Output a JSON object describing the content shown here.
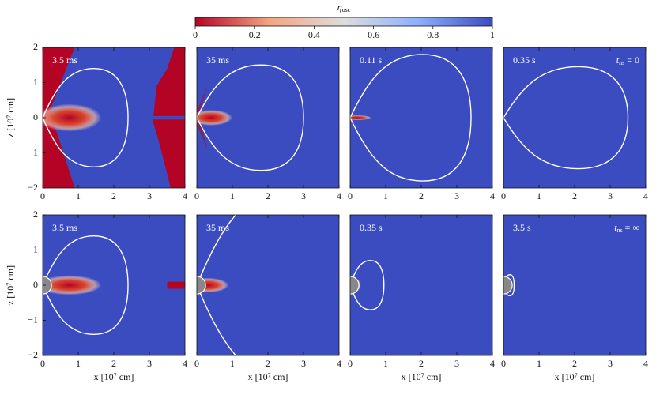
{
  "colorbar": {
    "label": "η",
    "label_sub": "osc",
    "lim": [
      0,
      1
    ],
    "ticks": [
      0,
      0.2,
      0.4,
      0.6,
      0.8,
      1
    ],
    "colormap": [
      "#b40426",
      "#f4a582",
      "#dddddd",
      "#8db0fe",
      "#3b4cc0"
    ]
  },
  "chart_data": [
    {
      "type": "heatmap",
      "title": "3.5 ms",
      "xlim": [
        0,
        4
      ],
      "ylim": [
        -2,
        2
      ],
      "xticks": [
        0,
        1,
        2,
        3,
        4
      ],
      "yticks": [
        {
          "value": -2,
          "label": "−2"
        },
        {
          "value": -1,
          "label": "−1"
        },
        0,
        1,
        2
      ],
      "ylabel": "z [10⁷ cm]"
    },
    {
      "type": "heatmap",
      "title": "35 ms",
      "xlim": [
        0,
        4
      ],
      "ylim": [
        -2,
        2
      ],
      "xticks": [
        0,
        1,
        2,
        3,
        4
      ]
    },
    {
      "type": "heatmap",
      "title": "0.11 s",
      "xlim": [
        0,
        4
      ],
      "ylim": [
        -2,
        2
      ],
      "xticks": [
        0,
        1,
        2,
        3,
        4
      ]
    },
    {
      "type": "heatmap",
      "title": "0.35 s",
      "xlim": [
        0,
        4
      ],
      "ylim": [
        -2,
        2
      ],
      "xticks": [
        0,
        1,
        2,
        3,
        4
      ],
      "annotation": {
        "var": "t",
        "sub": "ns",
        "rest": " = 0"
      }
    },
    {
      "type": "heatmap",
      "title": "3.5 ms",
      "xlim": [
        0,
        4
      ],
      "ylim": [
        -2,
        2
      ],
      "xticks": [
        0,
        1,
        2,
        3,
        4
      ],
      "yticks": [
        {
          "value": -2,
          "label": "−2"
        },
        {
          "value": -1,
          "label": "−1"
        },
        0,
        1,
        2
      ],
      "ylabel": "z [10⁷ cm]",
      "xlabel": "x [10⁷ cm]"
    },
    {
      "type": "heatmap",
      "title": "35 ms",
      "xlim": [
        0,
        4
      ],
      "ylim": [
        -2,
        2
      ],
      "xticks": [
        0,
        1,
        2,
        3,
        4
      ],
      "xlabel": "x [10⁷ cm]"
    },
    {
      "type": "heatmap",
      "title": "0.35 s",
      "xlim": [
        0,
        4
      ],
      "ylim": [
        -2,
        2
      ],
      "xticks": [
        0,
        1,
        2,
        3,
        4
      ],
      "xlabel": "x [10⁷ cm]"
    },
    {
      "type": "heatmap",
      "title": "3.5 s",
      "xlim": [
        0,
        4
      ],
      "ylim": [
        -2,
        2
      ],
      "xticks": [
        0,
        1,
        2,
        3,
        4
      ],
      "xlabel": "x [10⁷ cm]",
      "annotation": {
        "var": "t",
        "sub": "ns",
        "rest": " = ∞"
      }
    }
  ]
}
